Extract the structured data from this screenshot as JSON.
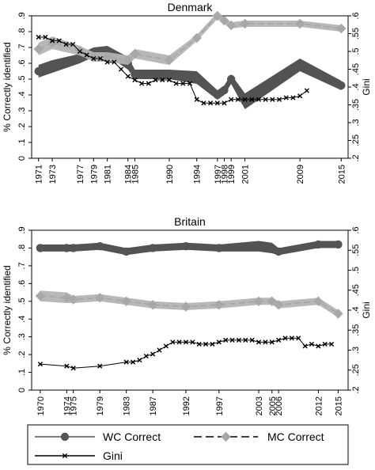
{
  "chart_data": [
    {
      "type": "line",
      "title": "Denmark",
      "xlabel": "",
      "ylabel": "% Correctly identified",
      "y2label": "Gini",
      "x_ticks": [
        "1971",
        "1973",
        "1977",
        "1979",
        "1981",
        "1984",
        "1985",
        "1990",
        "1994",
        "1997",
        "1998",
        "1999",
        "2001",
        "2009",
        "2015"
      ],
      "ylim": [
        0,
        0.9
      ],
      "y_ticks": [
        "0",
        ".1",
        ".2",
        ".3",
        ".4",
        ".5",
        ".6",
        ".7",
        ".8",
        ".9"
      ],
      "y2lim": [
        0.2,
        0.6
      ],
      "y2_ticks": [
        ".2",
        ".25",
        ".3",
        ".35",
        ".4",
        ".45",
        ".5",
        ".55",
        ".6"
      ],
      "grid": false,
      "series": [
        {
          "name": "WC Correct",
          "axis": "left",
          "x": [
            1971,
            1973,
            1977,
            1979,
            1981,
            1984,
            1985,
            1990,
            1994,
            1997,
            1998,
            1999,
            2001,
            2009,
            2015
          ],
          "values": [
            0.55,
            0.58,
            0.63,
            0.67,
            0.68,
            0.6,
            0.53,
            0.53,
            0.51,
            0.4,
            0.43,
            0.5,
            0.36,
            0.59,
            0.46
          ],
          "ci_low": [
            0.51,
            0.54,
            0.6,
            0.64,
            0.65,
            0.56,
            0.5,
            0.5,
            0.47,
            0.37,
            0.4,
            0.47,
            0.31,
            0.55,
            0.43
          ],
          "ci_high": [
            0.59,
            0.62,
            0.66,
            0.7,
            0.71,
            0.64,
            0.56,
            0.56,
            0.55,
            0.43,
            0.46,
            0.53,
            0.41,
            0.63,
            0.49
          ]
        },
        {
          "name": "MC Correct",
          "axis": "left",
          "x": [
            1971,
            1973,
            1977,
            1979,
            1981,
            1984,
            1985,
            1990,
            1994,
            1997,
            1998,
            1999,
            2001,
            2009,
            2015
          ],
          "values": [
            0.69,
            0.73,
            0.68,
            0.64,
            0.64,
            0.62,
            0.66,
            0.62,
            0.76,
            0.9,
            0.87,
            0.84,
            0.85,
            0.85,
            0.82
          ],
          "ci_low": [
            0.65,
            0.69,
            0.65,
            0.61,
            0.61,
            0.59,
            0.63,
            0.59,
            0.74,
            0.88,
            0.85,
            0.82,
            0.83,
            0.83,
            0.8
          ],
          "ci_high": [
            0.73,
            0.77,
            0.71,
            0.67,
            0.67,
            0.65,
            0.69,
            0.65,
            0.78,
            0.92,
            0.89,
            0.86,
            0.87,
            0.87,
            0.84
          ]
        },
        {
          "name": "Gini",
          "axis": "right",
          "x": [
            1971,
            1972,
            1973,
            1974,
            1975,
            1976,
            1977,
            1978,
            1979,
            1980,
            1981,
            1982,
            1983,
            1984,
            1985,
            1986,
            1987,
            1988,
            1989,
            1990,
            1991,
            1992,
            1993,
            1994,
            1995,
            1996,
            1997,
            1998,
            1999,
            2000,
            2001,
            2002,
            2003,
            2004,
            2005,
            2006,
            2007,
            2008,
            2009,
            2010
          ],
          "values": [
            0.54,
            0.54,
            0.53,
            0.53,
            0.52,
            0.52,
            0.5,
            0.49,
            0.48,
            0.48,
            0.47,
            0.47,
            0.45,
            0.43,
            0.42,
            0.41,
            0.41,
            0.42,
            0.42,
            0.42,
            0.41,
            0.41,
            0.41,
            0.365,
            0.355,
            0.355,
            0.355,
            0.355,
            0.365,
            0.365,
            0.365,
            0.365,
            0.365,
            0.365,
            0.365,
            0.365,
            0.37,
            0.37,
            0.375,
            0.39
          ]
        }
      ]
    },
    {
      "type": "line",
      "title": "Britain",
      "xlabel": "",
      "ylabel": "% Correctly identified",
      "y2label": "Gini",
      "x_ticks": [
        "1970",
        "1974",
        "1975",
        "1979",
        "1983",
        "1987",
        "1992",
        "1997",
        "2003",
        "2005",
        "2006",
        "2012",
        "2015"
      ],
      "ylim": [
        0,
        0.9
      ],
      "y_ticks": [
        "0",
        ".1",
        ".2",
        ".3",
        ".4",
        ".5",
        ".6",
        ".7",
        ".8",
        ".9"
      ],
      "y2lim": [
        0.2,
        0.6
      ],
      "y2_ticks": [
        ".2",
        ".25",
        ".3",
        ".35",
        ".4",
        ".45",
        ".5",
        ".55",
        ".6"
      ],
      "grid": false,
      "series": [
        {
          "name": "WC Correct",
          "axis": "left",
          "x": [
            1970,
            1974,
            1975,
            1979,
            1983,
            1987,
            1992,
            1997,
            2003,
            2005,
            2006,
            2012,
            2015
          ],
          "values": [
            0.8,
            0.8,
            0.8,
            0.81,
            0.78,
            0.8,
            0.81,
            0.8,
            0.81,
            0.8,
            0.78,
            0.82,
            0.82
          ],
          "ci_low": [
            0.78,
            0.78,
            0.78,
            0.79,
            0.76,
            0.78,
            0.79,
            0.78,
            0.78,
            0.77,
            0.76,
            0.8,
            0.8
          ],
          "ci_high": [
            0.82,
            0.82,
            0.82,
            0.83,
            0.8,
            0.82,
            0.83,
            0.82,
            0.84,
            0.83,
            0.8,
            0.84,
            0.84
          ]
        },
        {
          "name": "MC Correct",
          "axis": "left",
          "x": [
            1970,
            1974,
            1975,
            1979,
            1983,
            1987,
            1992,
            1997,
            2003,
            2005,
            2006,
            2012,
            2015
          ],
          "values": [
            0.53,
            0.52,
            0.51,
            0.52,
            0.5,
            0.48,
            0.47,
            0.48,
            0.5,
            0.5,
            0.48,
            0.5,
            0.43
          ],
          "ci_low": [
            0.5,
            0.49,
            0.49,
            0.5,
            0.48,
            0.46,
            0.45,
            0.46,
            0.48,
            0.48,
            0.46,
            0.48,
            0.41
          ],
          "ci_high": [
            0.56,
            0.55,
            0.53,
            0.54,
            0.52,
            0.5,
            0.49,
            0.5,
            0.52,
            0.52,
            0.5,
            0.52,
            0.45
          ]
        },
        {
          "name": "Gini",
          "axis": "right",
          "x": [
            1970,
            1974,
            1975,
            1979,
            1983,
            1984,
            1985,
            1986,
            1987,
            1988,
            1989,
            1990,
            1991,
            1992,
            1993,
            1994,
            1995,
            1996,
            1997,
            1998,
            1999,
            2000,
            2001,
            2002,
            2003,
            2004,
            2005,
            2006,
            2007,
            2008,
            2009,
            2010,
            2011,
            2012,
            2013,
            2014
          ],
          "values": [
            0.265,
            0.26,
            0.255,
            0.26,
            0.27,
            0.27,
            0.275,
            0.285,
            0.29,
            0.3,
            0.31,
            0.32,
            0.32,
            0.32,
            0.32,
            0.315,
            0.315,
            0.315,
            0.32,
            0.325,
            0.325,
            0.325,
            0.325,
            0.325,
            0.32,
            0.32,
            0.32,
            0.325,
            0.33,
            0.33,
            0.33,
            0.31,
            0.315,
            0.31,
            0.315,
            0.315
          ]
        }
      ]
    }
  ],
  "legend": {
    "items": [
      {
        "label": "WC Correct",
        "series": "WC Correct"
      },
      {
        "label": "MC Correct",
        "series": "MC Correct"
      },
      {
        "label": "Gini",
        "series": "Gini"
      }
    ]
  },
  "colors": {
    "wc": "#545454",
    "wc_band": "#4a4a4a",
    "mc": "#a8a8a8",
    "mc_band": "#b4b4b4",
    "gini": "#000000",
    "axis": "#000000"
  }
}
